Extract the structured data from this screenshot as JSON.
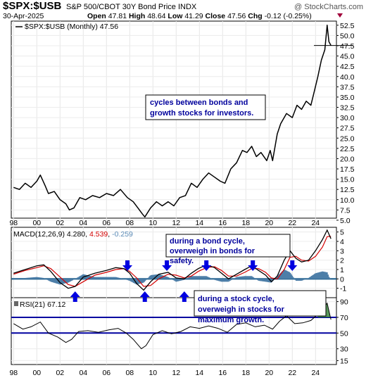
{
  "header": {
    "symbol": "$SPX:$USB",
    "name": "S&P 500/CBOT 30Y Bond Price INDX",
    "copyright": "@ StockCharts.com",
    "date": "30-Apr-2025",
    "open_label": "Open",
    "open": "47.81",
    "high_label": "High",
    "high": "48.64",
    "low_label": "Low",
    "low": "41.29",
    "close_label": "Close",
    "close": "47.56",
    "chg_label": "Chg",
    "chg": "-0.12 (-0.25%)"
  },
  "chart_data": [
    {
      "type": "line",
      "panel": "price",
      "legend": "$SPX:$USB (Monthly) 47.56",
      "ylim": [
        5.5,
        53.5
      ],
      "yticks": [
        "5.0",
        "7.5",
        "10.0",
        "12.5",
        "15.0",
        "17.5",
        "20.0",
        "22.5",
        "25.0",
        "27.5",
        "30.0",
        "32.5",
        "35.0",
        "37.5",
        "40.0",
        "42.5",
        "45.0",
        "47.5",
        "50.0",
        "52.5"
      ],
      "xticks": [
        "98",
        "00",
        "02",
        "04",
        "06",
        "08",
        "10",
        "12",
        "14",
        "16",
        "18",
        "20",
        "22",
        "24"
      ],
      "x": [
        1998.0,
        1998.5,
        1999.0,
        1999.5,
        2000.0,
        2000.3,
        2000.7,
        2001.0,
        2001.5,
        2002.0,
        2002.5,
        2002.8,
        2003.2,
        2003.7,
        2004.2,
        2004.8,
        2005.4,
        2006.0,
        2006.6,
        2007.2,
        2007.8,
        2008.3,
        2008.7,
        2009.1,
        2009.3,
        2009.8,
        2010.3,
        2010.8,
        2011.3,
        2011.8,
        2012.3,
        2012.8,
        2013.3,
        2013.8,
        2014.3,
        2014.8,
        2015.3,
        2015.8,
        2016.2,
        2016.7,
        2017.2,
        2017.7,
        2018.1,
        2018.5,
        2018.9,
        2019.3,
        2019.8,
        2020.1,
        2020.3,
        2020.7,
        2021.0,
        2021.5,
        2022.0,
        2022.4,
        2022.8,
        2023.2,
        2023.6,
        2023.9,
        2024.2,
        2024.5,
        2024.8,
        2025.0,
        2025.15,
        2025.33
      ],
      "y": [
        13.0,
        12.5,
        14.0,
        13.0,
        14.5,
        16.0,
        13.5,
        11.5,
        12.0,
        10.0,
        9.0,
        7.5,
        8.0,
        10.5,
        10.0,
        11.0,
        10.5,
        11.5,
        11.0,
        12.5,
        10.5,
        9.5,
        8.0,
        6.5,
        5.8,
        8.0,
        9.5,
        8.5,
        9.5,
        8.5,
        10.5,
        11.0,
        14.0,
        13.0,
        15.0,
        16.5,
        15.5,
        14.5,
        14.0,
        17.5,
        19.0,
        22.0,
        21.5,
        23.0,
        20.5,
        21.5,
        19.5,
        22.0,
        19.5,
        26.0,
        28.5,
        31.0,
        30.0,
        33.0,
        32.0,
        34.0,
        33.0,
        36.5,
        40.0,
        44.0,
        46.5,
        52.5,
        48.5,
        47.56
      ],
      "last_value": "47.56",
      "annotation": "cycles between bonds and growth stocks for investors."
    },
    {
      "type": "line",
      "panel": "macd",
      "legend": {
        "label": "MACD(12,26,9)",
        "macd": "4.280",
        "signal": "4.539",
        "histogram": "-0.259"
      },
      "ylim": [
        -2,
        5.5
      ],
      "yticks": [
        "-1",
        "0",
        "1",
        "2",
        "3",
        "4",
        "5"
      ],
      "x": [
        1998.0,
        1999.0,
        2000.0,
        2000.6,
        2001.2,
        2002.0,
        2002.7,
        2003.3,
        2004.0,
        2005.0,
        2006.0,
        2006.8,
        2007.5,
        2008.0,
        2008.6,
        2009.2,
        2009.8,
        2010.5,
        2011.3,
        2012.0,
        2012.7,
        2013.3,
        2013.9,
        2014.6,
        2015.3,
        2015.9,
        2016.5,
        2017.2,
        2017.9,
        2018.5,
        2019.1,
        2019.7,
        2020.2,
        2020.7,
        2021.3,
        2021.8,
        2022.3,
        2022.8,
        2023.4,
        2024.0,
        2024.6,
        2025.0,
        2025.33
      ],
      "macd": [
        0.6,
        1.0,
        1.4,
        1.5,
        0.8,
        -0.4,
        -1.0,
        -0.8,
        0.2,
        0.6,
        0.9,
        1.2,
        1.1,
        0.6,
        -0.5,
        -1.2,
        -0.3,
        0.5,
        0.7,
        0.1,
        0.0,
        0.6,
        1.1,
        1.5,
        1.2,
        0.6,
        0.0,
        0.5,
        1.0,
        1.4,
        0.9,
        0.4,
        -0.3,
        0.3,
        2.0,
        3.0,
        2.2,
        1.8,
        2.0,
        3.0,
        4.2,
        5.2,
        4.28
      ],
      "signal": [
        0.5,
        0.9,
        1.2,
        1.4,
        1.1,
        0.2,
        -0.6,
        -0.8,
        -0.3,
        0.4,
        0.7,
        1.0,
        1.1,
        0.8,
        0.1,
        -0.8,
        -0.7,
        0.0,
        0.5,
        0.4,
        0.1,
        0.3,
        0.8,
        1.2,
        1.3,
        0.9,
        0.3,
        0.3,
        0.7,
        1.1,
        1.1,
        0.7,
        0.1,
        0.0,
        1.0,
        2.3,
        2.4,
        2.0,
        1.9,
        2.4,
        3.4,
        4.5,
        4.539
      ],
      "events": [
        {
          "x": 2003.3,
          "direction": "up",
          "side": "below"
        },
        {
          "x": 2007.8,
          "direction": "down",
          "side": "above"
        },
        {
          "x": 2009.3,
          "direction": "up",
          "side": "below"
        },
        {
          "x": 2011.2,
          "direction": "down",
          "side": "above"
        },
        {
          "x": 2012.7,
          "direction": "up",
          "side": "below"
        },
        {
          "x": 2014.6,
          "direction": "down",
          "side": "above"
        },
        {
          "x": 2016.5,
          "direction": "up",
          "side": "below"
        },
        {
          "x": 2018.6,
          "direction": "down",
          "side": "above"
        },
        {
          "x": 2020.3,
          "direction": "up",
          "side": "below"
        },
        {
          "x": 2022.0,
          "direction": "down",
          "side": "above"
        },
        {
          "x": 2023.5,
          "direction": "up",
          "side": "below"
        }
      ],
      "annotation_bond": "during a bond cycle, overweigh in bonds for safety.",
      "annotation_stock": "during a stock cycle, overweigh in stocks for maximum growth."
    },
    {
      "type": "line",
      "panel": "rsi",
      "legend": "RSI(21) 67.12",
      "ylim": [
        10,
        95
      ],
      "yticks": [
        "15",
        "30",
        "50",
        "70",
        "90"
      ],
      "reference_lines": [
        70,
        50
      ],
      "xticks": [
        "98",
        "00",
        "02",
        "04",
        "06",
        "08",
        "10",
        "12",
        "14",
        "16",
        "18",
        "20",
        "22",
        "24"
      ],
      "x": [
        1998.0,
        1998.8,
        1999.5,
        2000.3,
        2001.0,
        2001.8,
        2002.5,
        2003.0,
        2003.6,
        2004.4,
        2005.3,
        2006.2,
        2007.0,
        2007.7,
        2008.3,
        2009.0,
        2009.4,
        2010.0,
        2010.8,
        2011.6,
        2012.4,
        2013.2,
        2014.0,
        2014.8,
        2015.6,
        2016.4,
        2017.2,
        2018.0,
        2018.8,
        2019.6,
        2020.3,
        2020.9,
        2021.5,
        2022.2,
        2022.9,
        2023.6,
        2024.2,
        2024.7,
        2025.0,
        2025.33
      ],
      "rsi": [
        62,
        55,
        58,
        64,
        50,
        45,
        38,
        42,
        52,
        53,
        51,
        54,
        56,
        50,
        42,
        30,
        34,
        48,
        53,
        49,
        52,
        58,
        56,
        59,
        56,
        51,
        61,
        63,
        58,
        60,
        55,
        65,
        72,
        62,
        63,
        66,
        74,
        82,
        88,
        67.12
      ]
    }
  ],
  "colors": {
    "price_line": "#000000",
    "macd_line": "#000000",
    "signal_line": "#d40000",
    "histogram": "#4d7ea8",
    "macd_zero_fill": "#1f5f8b",
    "signal_value": "#d40000",
    "histogram_value": "#5a8ab5",
    "arrow": "#0000e0",
    "note_text": "#00009c",
    "rsi_line": "#000000",
    "rsi_ref_line": "#0000a0",
    "rsi_fill_above": "#2e7d32"
  }
}
